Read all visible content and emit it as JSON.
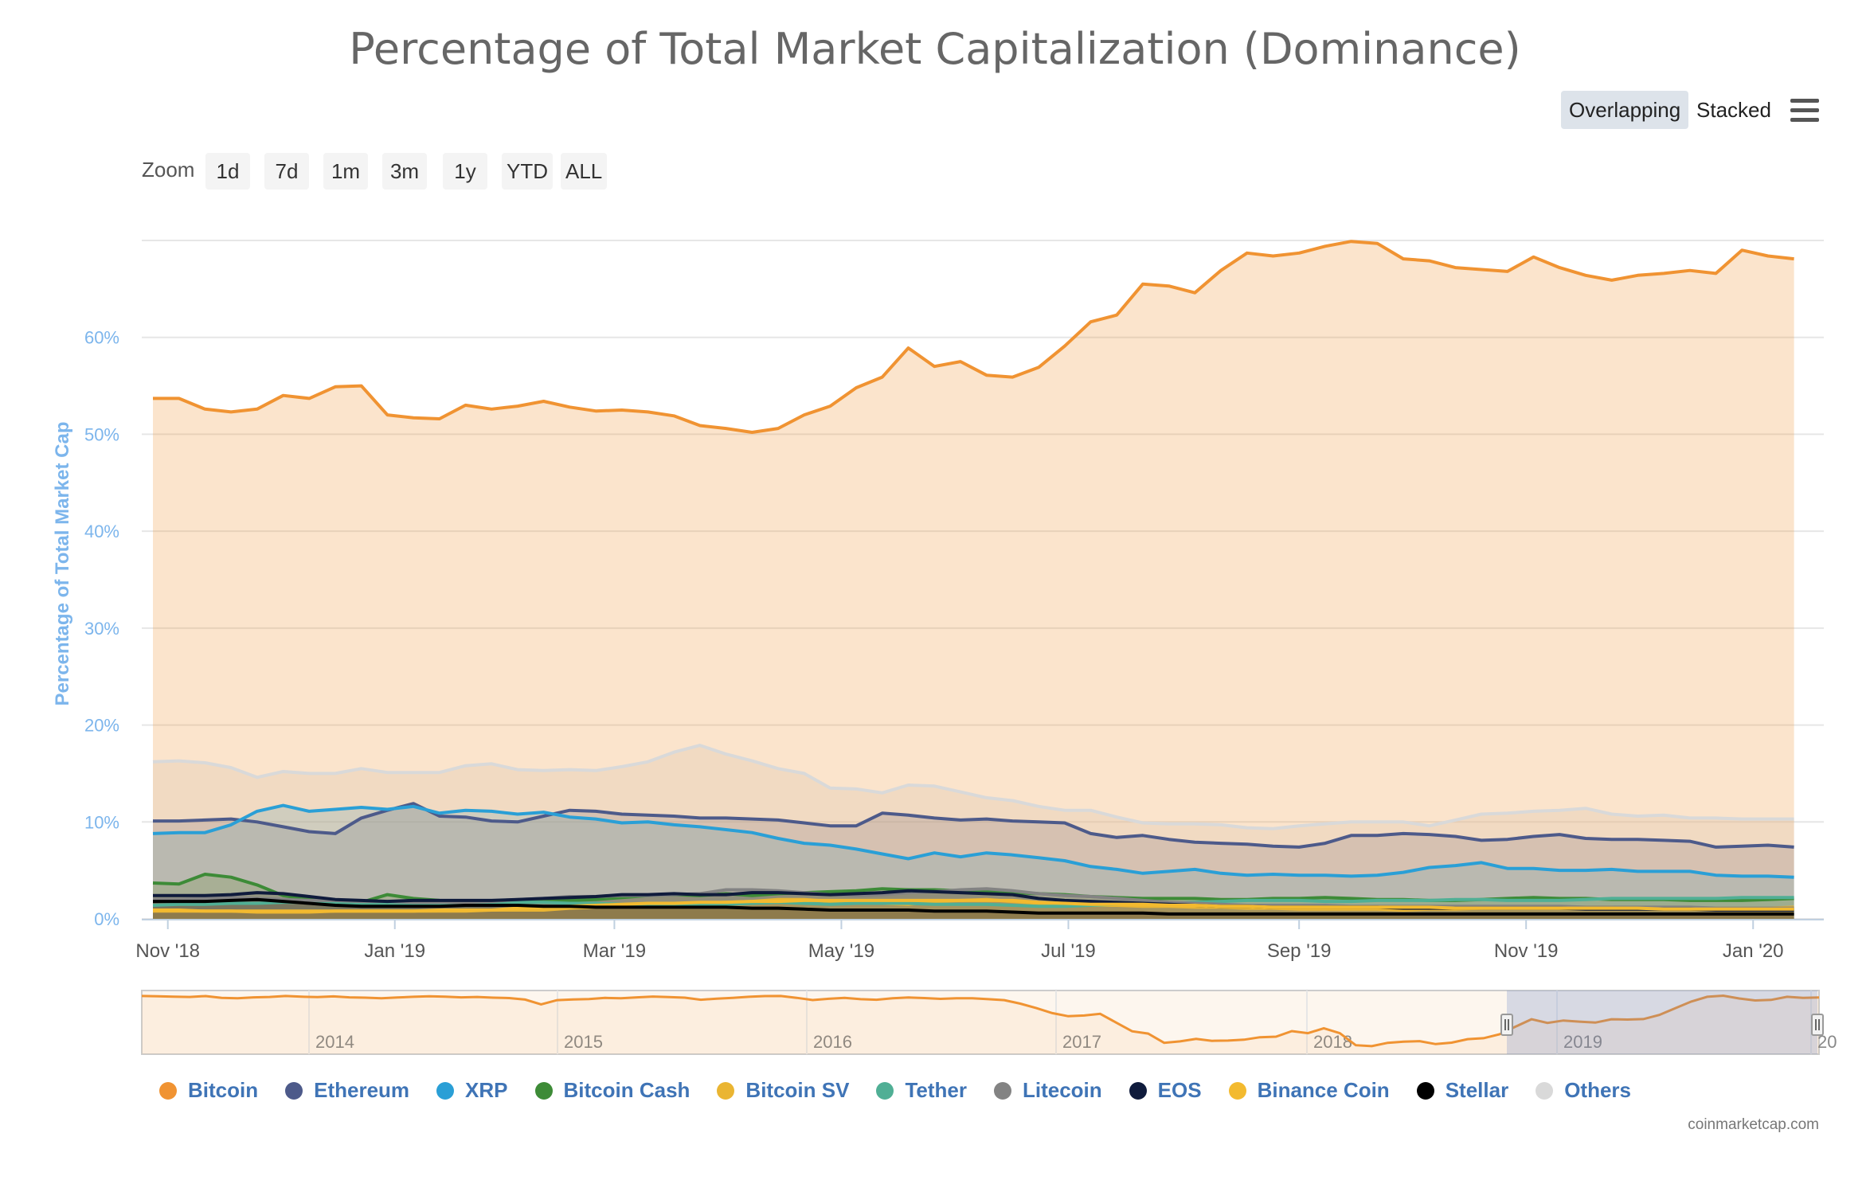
{
  "title": "Percentage of Total Market Capitalization (Dominance)",
  "modes": {
    "overlapping": "Overlapping",
    "stacked": "Stacked"
  },
  "menu_icon": "hamburger-menu-icon",
  "zoom": {
    "label": "Zoom",
    "buttons": [
      "1d",
      "7d",
      "1m",
      "3m",
      "1y",
      "YTD",
      "ALL"
    ]
  },
  "credits": "coinmarketcap.com",
  "chart_data": {
    "type": "area",
    "title": "Percentage of Total Market Capitalization (Dominance)",
    "ylabel": "Percentage of Total Market Cap",
    "ylim": [
      0,
      70
    ],
    "yticks": [
      "0%",
      "10%",
      "20%",
      "30%",
      "40%",
      "50%",
      "60%"
    ],
    "x_dates": [
      "2018-10-28",
      "2018-11-04",
      "2018-11-11",
      "2018-11-18",
      "2018-11-25",
      "2018-12-02",
      "2018-12-09",
      "2018-12-16",
      "2018-12-23",
      "2018-12-30",
      "2019-01-06",
      "2019-01-13",
      "2019-01-20",
      "2019-01-27",
      "2019-02-03",
      "2019-02-10",
      "2019-02-17",
      "2019-02-24",
      "2019-03-03",
      "2019-03-10",
      "2019-03-17",
      "2019-03-24",
      "2019-03-31",
      "2019-04-07",
      "2019-04-14",
      "2019-04-21",
      "2019-04-28",
      "2019-05-05",
      "2019-05-12",
      "2019-05-19",
      "2019-05-26",
      "2019-06-02",
      "2019-06-09",
      "2019-06-16",
      "2019-06-23",
      "2019-06-30",
      "2019-07-07",
      "2019-07-14",
      "2019-07-21",
      "2019-07-28",
      "2019-08-04",
      "2019-08-11",
      "2019-08-18",
      "2019-08-25",
      "2019-09-01",
      "2019-09-08",
      "2019-09-15",
      "2019-09-22",
      "2019-09-29",
      "2019-10-06",
      "2019-10-13",
      "2019-10-20",
      "2019-10-27",
      "2019-11-03",
      "2019-11-10",
      "2019-11-17",
      "2019-11-24",
      "2019-12-01",
      "2019-12-08",
      "2019-12-15",
      "2019-12-22",
      "2019-12-29",
      "2020-01-05",
      "2020-01-12"
    ],
    "x_range": [
      "2018-10-25",
      "2020-01-20"
    ],
    "x_ticks": [
      {
        "label": "Nov '18",
        "date": "2018-11-01"
      },
      {
        "label": "Jan '19",
        "date": "2019-01-01"
      },
      {
        "label": "Mar '19",
        "date": "2019-03-01"
      },
      {
        "label": "May '19",
        "date": "2019-05-01"
      },
      {
        "label": "Jul '19",
        "date": "2019-07-01"
      },
      {
        "label": "Sep '19",
        "date": "2019-09-01"
      },
      {
        "label": "Nov '19",
        "date": "2019-11-01"
      },
      {
        "label": "Jan '20",
        "date": "2020-01-01"
      }
    ],
    "series": [
      {
        "name": "Others",
        "color": "#d9d9d9",
        "values": [
          16.2,
          16.3,
          16.1,
          15.6,
          14.6,
          15.2,
          15.0,
          15.0,
          15.5,
          15.1,
          15.1,
          15.1,
          15.8,
          16.0,
          15.4,
          15.3,
          15.4,
          15.3,
          15.7,
          16.2,
          17.2,
          17.9,
          17.0,
          16.3,
          15.5,
          15.0,
          13.5,
          13.4,
          13.0,
          13.8,
          13.7,
          13.1,
          12.5,
          12.2,
          11.6,
          11.2,
          11.2,
          10.5,
          9.9,
          9.8,
          9.8,
          9.7,
          9.4,
          9.3,
          9.6,
          9.8,
          10.0,
          10.0,
          10.0,
          9.6,
          10.2,
          10.8,
          10.9,
          11.1,
          11.2,
          11.4,
          10.8,
          10.6,
          10.7,
          10.4,
          10.4,
          10.3,
          10.3,
          10.3
        ]
      },
      {
        "name": "Ethereum",
        "color": "#4d5a8a",
        "values": [
          10.1,
          10.1,
          10.2,
          10.3,
          10.0,
          9.5,
          9.0,
          8.8,
          10.4,
          11.2,
          11.9,
          10.6,
          10.5,
          10.1,
          10.0,
          10.6,
          11.2,
          11.1,
          10.8,
          10.7,
          10.6,
          10.4,
          10.4,
          10.3,
          10.2,
          9.9,
          9.6,
          9.6,
          10.9,
          10.7,
          10.4,
          10.2,
          10.3,
          10.1,
          10.0,
          9.9,
          8.8,
          8.4,
          8.6,
          8.2,
          7.9,
          7.8,
          7.7,
          7.5,
          7.4,
          7.8,
          8.6,
          8.6,
          8.8,
          8.7,
          8.5,
          8.1,
          8.2,
          8.5,
          8.7,
          8.3,
          8.2,
          8.2,
          8.1,
          8.0,
          7.4,
          7.5,
          7.6,
          7.4
        ]
      },
      {
        "name": "XRP",
        "color": "#2a9fd6",
        "values": [
          8.8,
          8.9,
          8.9,
          9.7,
          11.1,
          11.7,
          11.1,
          11.3,
          11.5,
          11.3,
          11.6,
          10.9,
          11.2,
          11.1,
          10.8,
          11.0,
          10.5,
          10.3,
          9.9,
          10.0,
          9.7,
          9.5,
          9.2,
          8.9,
          8.3,
          7.8,
          7.6,
          7.2,
          6.7,
          6.2,
          6.8,
          6.4,
          6.8,
          6.6,
          6.3,
          6.0,
          5.4,
          5.1,
          4.7,
          4.9,
          5.1,
          4.7,
          4.5,
          4.6,
          4.5,
          4.5,
          4.4,
          4.5,
          4.8,
          5.3,
          5.5,
          5.8,
          5.2,
          5.2,
          5.0,
          5.0,
          5.1,
          4.9,
          4.9,
          4.9,
          4.5,
          4.4,
          4.4,
          4.3
        ]
      },
      {
        "name": "Bitcoin Cash",
        "color": "#3d8b37",
        "values": [
          3.7,
          3.6,
          4.6,
          4.3,
          3.5,
          2.4,
          2.0,
          1.8,
          1.7,
          2.5,
          2.1,
          1.9,
          1.8,
          1.7,
          1.7,
          1.8,
          1.9,
          2.0,
          2.2,
          2.4,
          2.5,
          2.4,
          2.6,
          2.4,
          2.6,
          2.7,
          2.8,
          2.9,
          3.1,
          3.0,
          3.0,
          2.9,
          2.8,
          2.7,
          2.6,
          2.5,
          2.3,
          2.2,
          2.1,
          2.1,
          2.1,
          2.0,
          2.0,
          2.1,
          2.1,
          2.2,
          2.1,
          2.0,
          2.0,
          1.9,
          1.9,
          2.0,
          2.1,
          2.2,
          2.1,
          2.1,
          2.0,
          2.0,
          2.0,
          1.9,
          1.9,
          1.9,
          2.0,
          2.1
        ]
      },
      {
        "name": "Bitcoin SV",
        "color": "#eab532",
        "values": [
          0.8,
          0.8,
          0.8,
          0.8,
          0.7,
          0.7,
          0.7,
          0.8,
          0.8,
          0.8,
          0.8,
          0.8,
          0.8,
          0.9,
          0.9,
          0.9,
          1.1,
          1.2,
          1.3,
          1.4,
          1.6,
          1.6,
          1.7,
          1.8,
          2.0,
          2.0,
          1.8,
          1.8,
          1.6,
          1.5,
          1.8,
          1.9,
          2.0,
          1.8,
          1.6,
          1.5,
          1.4,
          1.4,
          1.3,
          1.3,
          1.2,
          1.2,
          1.1,
          1.1,
          1.0,
          1.0,
          1.0,
          1.0,
          0.9,
          1.0,
          1.0,
          1.1,
          1.2,
          1.2,
          1.2,
          1.2,
          1.2,
          1.1,
          1.1,
          1.1,
          1.1,
          1.1,
          1.1,
          1.2
        ]
      },
      {
        "name": "Tether",
        "color": "#50af95",
        "values": [
          1.4,
          1.5,
          1.5,
          1.6,
          1.6,
          1.7,
          1.7,
          1.6,
          1.5,
          1.5,
          1.6,
          1.6,
          1.6,
          1.7,
          1.7,
          1.7,
          1.6,
          1.6,
          1.5,
          1.5,
          1.4,
          1.4,
          1.5,
          1.6,
          1.7,
          1.6,
          1.5,
          1.6,
          1.6,
          1.6,
          1.5,
          1.5,
          1.5,
          1.4,
          1.3,
          1.3,
          1.4,
          1.5,
          1.6,
          1.6,
          1.7,
          1.8,
          1.9,
          1.9,
          1.9,
          1.8,
          1.8,
          1.9,
          1.9,
          1.9,
          2.0,
          2.0,
          1.9,
          1.9,
          1.9,
          2.0,
          2.1,
          2.1,
          2.1,
          2.1,
          2.1,
          2.2,
          2.2,
          2.2
        ]
      },
      {
        "name": "Litecoin",
        "color": "#838383",
        "values": [
          2.0,
          2.0,
          2.1,
          2.2,
          2.1,
          2.0,
          1.9,
          1.9,
          1.8,
          1.8,
          1.7,
          1.7,
          1.7,
          1.8,
          2.0,
          2.1,
          2.3,
          2.3,
          2.4,
          2.4,
          2.5,
          2.6,
          3.0,
          3.0,
          2.9,
          2.7,
          2.5,
          2.4,
          2.5,
          2.7,
          2.8,
          3.0,
          3.1,
          2.9,
          2.6,
          2.4,
          2.3,
          2.1,
          1.9,
          1.7,
          1.6,
          1.5,
          1.4,
          1.4,
          1.4,
          1.4,
          1.3,
          1.3,
          1.3,
          1.3,
          1.3,
          1.3,
          1.3,
          1.3,
          1.3,
          1.2,
          1.2,
          1.2,
          1.2,
          1.2,
          1.1,
          1.1,
          1.1,
          1.1
        ]
      },
      {
        "name": "EOS",
        "color": "#0f1b3c",
        "values": [
          2.4,
          2.4,
          2.4,
          2.5,
          2.7,
          2.6,
          2.3,
          2.0,
          1.9,
          1.8,
          1.9,
          1.9,
          1.9,
          1.9,
          2.0,
          2.1,
          2.2,
          2.3,
          2.5,
          2.5,
          2.6,
          2.5,
          2.5,
          2.7,
          2.7,
          2.6,
          2.5,
          2.6,
          2.7,
          2.9,
          2.8,
          2.7,
          2.6,
          2.5,
          2.1,
          1.9,
          1.8,
          1.7,
          1.6,
          1.5,
          1.4,
          1.3,
          1.3,
          1.2,
          1.2,
          1.2,
          1.2,
          1.2,
          1.1,
          1.1,
          1.1,
          1.1,
          1.1,
          1.1,
          1.1,
          1.0,
          1.0,
          1.0,
          1.0,
          1.0,
          0.9,
          0.9,
          0.9,
          0.9
        ]
      },
      {
        "name": "Binance Coin",
        "color": "#f3ba2f",
        "values": [
          0.9,
          0.9,
          0.8,
          0.8,
          0.8,
          0.8,
          0.8,
          0.8,
          0.8,
          0.8,
          0.8,
          0.9,
          0.9,
          0.9,
          1.1,
          1.2,
          1.3,
          1.4,
          1.5,
          1.6,
          1.6,
          1.7,
          1.7,
          1.8,
          1.8,
          1.9,
          1.9,
          1.9,
          1.9,
          1.9,
          1.9,
          1.9,
          1.9,
          1.9,
          1.7,
          1.6,
          1.5,
          1.5,
          1.5,
          1.4,
          1.4,
          1.3,
          1.3,
          1.2,
          1.2,
          1.2,
          1.2,
          1.2,
          1.2,
          1.2,
          1.1,
          1.1,
          1.1,
          1.1,
          1.1,
          1.1,
          1.1,
          1.1,
          1.0,
          1.0,
          1.0,
          1.0,
          1.0,
          1.0
        ]
      },
      {
        "name": "Stellar",
        "color": "#000000",
        "values": [
          1.8,
          1.8,
          1.8,
          1.9,
          2.0,
          1.8,
          1.6,
          1.4,
          1.3,
          1.3,
          1.3,
          1.3,
          1.4,
          1.4,
          1.4,
          1.3,
          1.3,
          1.2,
          1.2,
          1.2,
          1.2,
          1.2,
          1.2,
          1.1,
          1.1,
          1.0,
          0.9,
          0.9,
          0.9,
          0.9,
          0.8,
          0.8,
          0.8,
          0.7,
          0.6,
          0.6,
          0.6,
          0.6,
          0.6,
          0.5,
          0.5,
          0.5,
          0.5,
          0.5,
          0.5,
          0.5,
          0.5,
          0.5,
          0.5,
          0.5,
          0.5,
          0.5,
          0.5,
          0.5,
          0.5,
          0.5,
          0.5,
          0.5,
          0.5,
          0.5,
          0.5,
          0.5,
          0.5,
          0.5
        ]
      },
      {
        "name": "Bitcoin",
        "color": "#f09332",
        "values": [
          53.7,
          53.7,
          52.6,
          52.3,
          52.6,
          54.0,
          53.7,
          54.9,
          55.0,
          52.0,
          51.7,
          51.6,
          53.0,
          52.6,
          52.9,
          53.4,
          52.8,
          52.4,
          52.5,
          52.3,
          51.9,
          50.9,
          50.6,
          50.2,
          50.6,
          52.0,
          52.9,
          54.8,
          55.9,
          58.9,
          57.0,
          57.5,
          56.1,
          55.9,
          56.9,
          59.1,
          61.6,
          62.3,
          65.5,
          65.3,
          64.6,
          66.9,
          68.7,
          68.4,
          68.7,
          69.4,
          69.9,
          69.7,
          68.1,
          67.9,
          67.2,
          67.0,
          66.8,
          68.3,
          67.2,
          66.4,
          65.9,
          66.4,
          66.6,
          66.9,
          66.6,
          69.0,
          68.4,
          68.1
        ]
      }
    ],
    "legend_order": [
      "Bitcoin",
      "Ethereum",
      "XRP",
      "Bitcoin Cash",
      "Bitcoin SV",
      "Tether",
      "Litecoin",
      "EOS",
      "Binance Coin",
      "Stellar",
      "Others"
    ],
    "navigator": {
      "year_labels": [
        "2014",
        "2015",
        "2016",
        "2017",
        "2018",
        "2019",
        "20"
      ],
      "values": [
        69.5,
        69.3,
        69.0,
        68.8,
        69.4,
        68.1,
        67.9,
        68.5,
        68.8,
        69.5,
        69.0,
        68.7,
        69.2,
        68.5,
        68.3,
        67.9,
        68.4,
        68.9,
        69.3,
        69.0,
        68.5,
        68.8,
        68.3,
        68.0,
        66.9,
        63.5,
        66.5,
        67.0,
        67.3,
        68.1,
        67.9,
        68.5,
        69.1,
        68.7,
        68.3,
        66.8,
        67.6,
        68.2,
        68.9,
        69.4,
        69.5,
        68.2,
        66.6,
        67.5,
        68.1,
        67.2,
        66.8,
        67.9,
        68.4,
        68.0,
        67.4,
        67.9,
        67.8,
        67.2,
        66.5,
        64.0,
        60.8,
        57.2,
        55.0,
        55.5,
        56.7,
        50.4,
        44.2,
        42.5,
        35.9,
        36.9,
        38.7,
        37.3,
        37.5,
        38.1,
        39.9,
        40.3,
        44.3,
        42.8,
        46.3,
        42.8,
        34.2,
        33.5,
        35.9,
        36.7,
        37.1,
        35.0,
        36.0,
        38.5,
        39.2,
        42.0,
        47.5,
        52.8,
        50.2,
        51.9,
        51.1,
        50.4,
        52.8,
        52.6,
        52.9,
        55.9,
        60.7,
        65.5,
        68.9,
        69.7,
        67.7,
        66.3,
        66.7,
        68.9,
        68.1,
        68.4
      ]
    }
  }
}
